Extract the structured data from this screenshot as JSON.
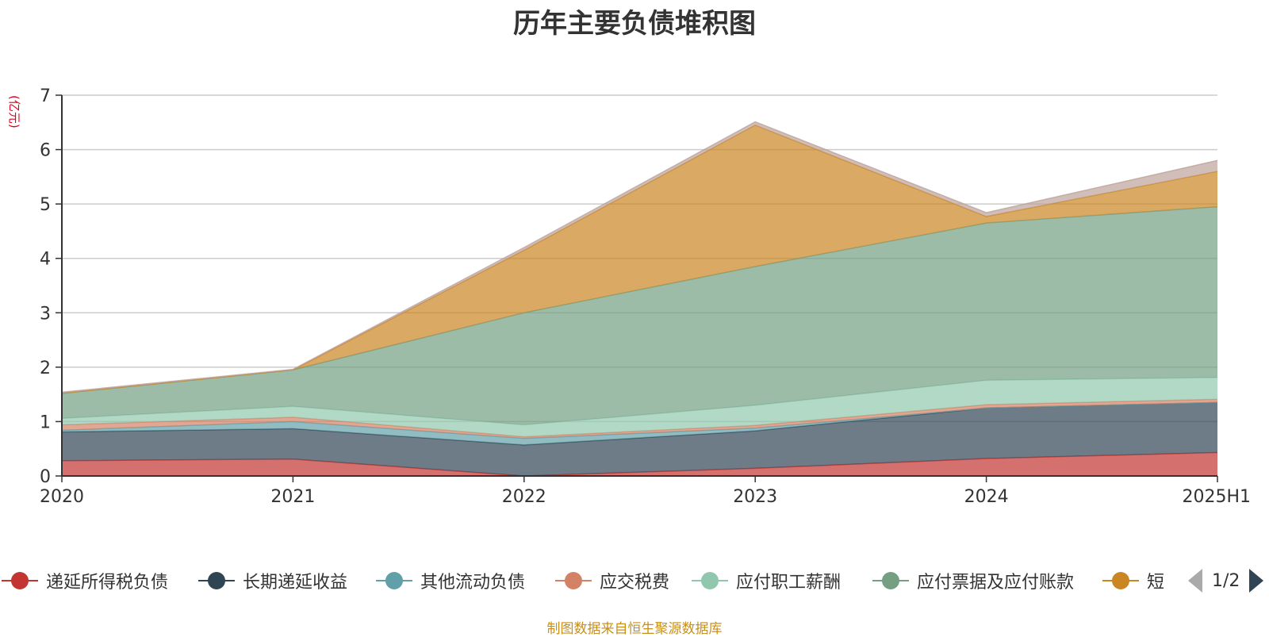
{
  "chart_data": {
    "type": "area",
    "title": "历年主要负债堆积图",
    "y_unit": "(亿元)",
    "categories": [
      "2020",
      "2021",
      "2022",
      "2023",
      "2024",
      "2025H1"
    ],
    "ylim": [
      0,
      7
    ],
    "y_ticks": [
      0,
      1,
      2,
      3,
      4,
      5,
      6,
      7
    ],
    "grid": true,
    "stacked": true,
    "legend_position": "bottom",
    "series": [
      {
        "name": "递延所得税负债",
        "color": "#c23531",
        "values": [
          0.28,
          0.31,
          0.0,
          0.14,
          0.32,
          0.43
        ]
      },
      {
        "name": "长期递延收益",
        "color": "#2f4554",
        "values": [
          0.53,
          0.56,
          0.57,
          0.69,
          0.93,
          0.92
        ]
      },
      {
        "name": "其他流动负债",
        "color": "#61a0a8",
        "values": [
          0.03,
          0.13,
          0.12,
          0.05,
          0.0,
          0.0
        ]
      },
      {
        "name": "应交税费",
        "color": "#d48265",
        "values": [
          0.1,
          0.08,
          0.03,
          0.05,
          0.06,
          0.06
        ]
      },
      {
        "name": "应付职工薪酬",
        "color": "#91c7ae",
        "values": [
          0.12,
          0.2,
          0.22,
          0.37,
          0.45,
          0.4
        ]
      },
      {
        "name": "应付票据及应付账款",
        "color": "#749f83",
        "values": [
          0.46,
          0.67,
          2.06,
          2.55,
          2.89,
          3.14
        ]
      },
      {
        "name": "短",
        "color": "#ca8622",
        "values": [
          0.0,
          0.0,
          1.15,
          2.6,
          0.12,
          0.65
        ]
      },
      {
        "name": "",
        "color": "#bda29a",
        "values": [
          0.02,
          0.01,
          0.05,
          0.06,
          0.07,
          0.2
        ]
      }
    ]
  },
  "legend": {
    "page": "1/2"
  },
  "source": "制图数据来自恒生聚源数据库"
}
